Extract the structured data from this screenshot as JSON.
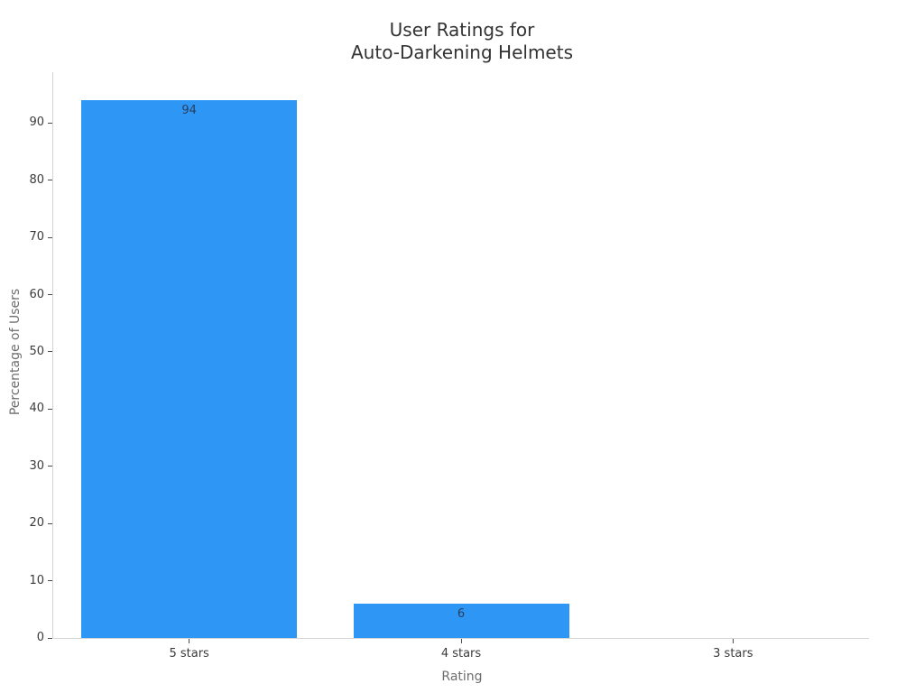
{
  "chart_data": {
    "type": "bar",
    "title": "User Ratings for\nAuto-Darkening Helmets",
    "title_lines": [
      "User Ratings for",
      "Auto-Darkening Helmets"
    ],
    "xlabel": "Rating",
    "ylabel": "Percentage of Users",
    "categories": [
      "5 stars",
      "4 stars",
      "3 stars"
    ],
    "values": [
      94,
      6,
      0
    ],
    "bar_value_labels": [
      "94",
      "6",
      ""
    ],
    "yticks": [
      0,
      10,
      20,
      30,
      40,
      50,
      60,
      70,
      80,
      90
    ],
    "ylim": [
      0,
      99
    ],
    "grid": false,
    "legend": "none",
    "colors": {
      "bar": "#2E96F4",
      "title": "#333333",
      "tick_label": "#3b3b3b",
      "axis_title": "#6e6e6e",
      "axis_line": "#d4d4d4",
      "tick_mark": "#4a4a4a",
      "value_label": "#2a3f5f",
      "background": "#ffffff"
    }
  }
}
